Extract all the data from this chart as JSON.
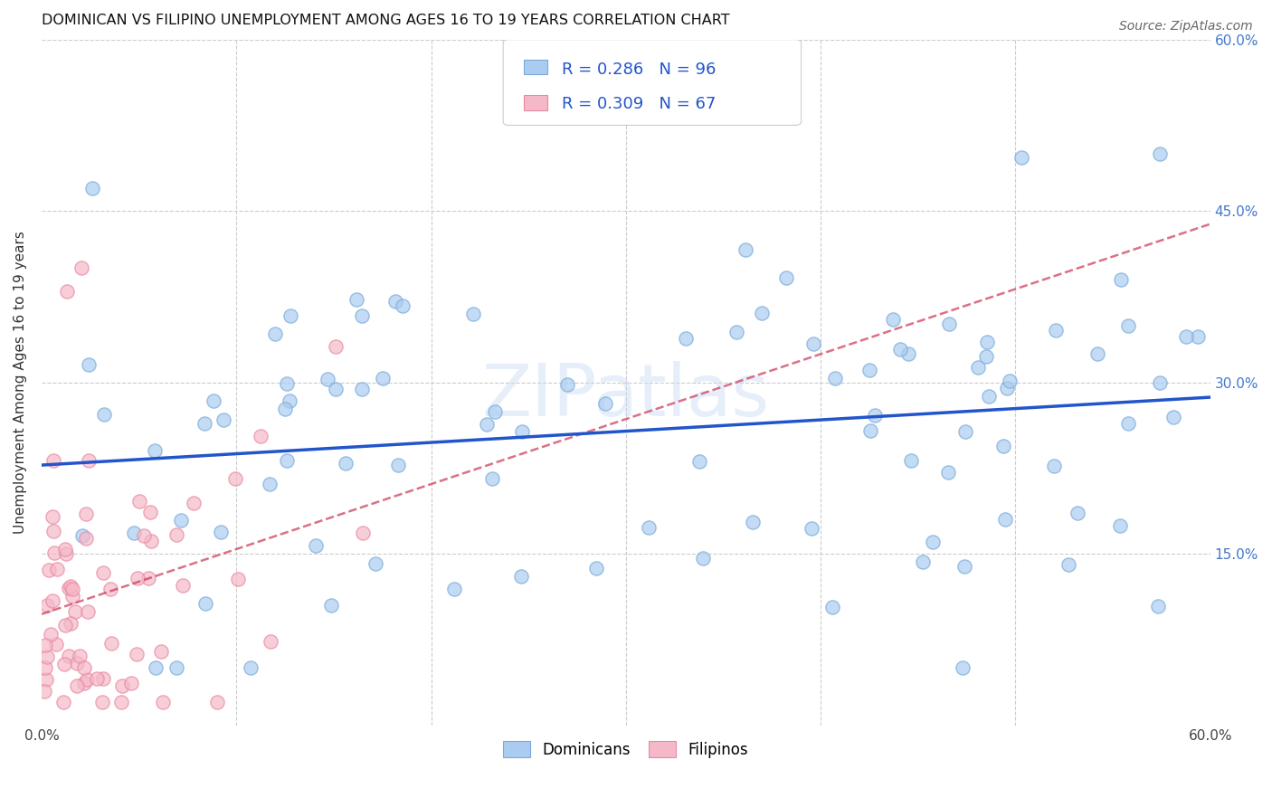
{
  "title": "DOMINICAN VS FILIPINO UNEMPLOYMENT AMONG AGES 16 TO 19 YEARS CORRELATION CHART",
  "source": "Source: ZipAtlas.com",
  "ylabel": "Unemployment Among Ages 16 to 19 years",
  "xlim": [
    0.0,
    0.6
  ],
  "ylim": [
    0.0,
    0.6
  ],
  "dominican_color": "#aaccf0",
  "dominican_edge": "#7aaad8",
  "filipino_color": "#f5b8c8",
  "filipino_edge": "#e888a0",
  "trend_dominican_color": "#2255cc",
  "trend_filipino_color": "#cc3355",
  "R_dominican": 0.286,
  "N_dominican": 96,
  "R_filipino": 0.309,
  "N_filipino": 67,
  "legend_label_dominican": "Dominicans",
  "legend_label_filipino": "Filipinos",
  "background_color": "#ffffff",
  "grid_color": "#cccccc",
  "watermark": "ZIPatlas",
  "title_fontsize": 11.5,
  "source_fontsize": 10,
  "axis_label_fontsize": 11,
  "tick_fontsize": 11,
  "legend_fontsize": 13,
  "scatter_size": 120,
  "scatter_alpha": 0.7,
  "scatter_linewidth": 1.0
}
